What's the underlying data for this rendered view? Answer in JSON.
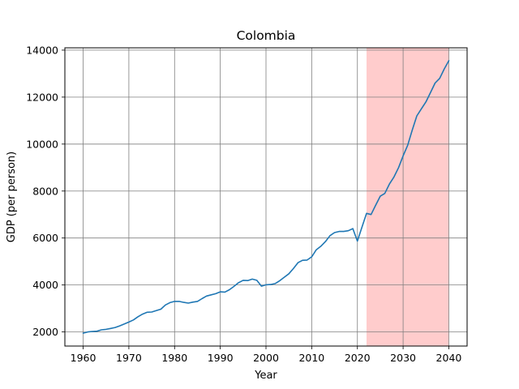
{
  "chart_data": {
    "type": "line",
    "title": "Colombia",
    "xlabel": "Year",
    "ylabel": "GDP (per person)",
    "xlim": [
      1956,
      2044
    ],
    "ylim": [
      1400,
      14100
    ],
    "xticks": [
      1960,
      1970,
      1980,
      1990,
      2000,
      2010,
      2020,
      2030,
      2040
    ],
    "yticks": [
      2000,
      4000,
      6000,
      8000,
      10000,
      12000,
      14000
    ],
    "grid": true,
    "shaded_region": {
      "x_start": 2022,
      "x_end": 2040,
      "color": "#ffcccc"
    },
    "series": [
      {
        "color": "#1f77b4",
        "x": [
          1960,
          1961,
          1962,
          1963,
          1964,
          1965,
          1966,
          1967,
          1968,
          1969,
          1970,
          1971,
          1972,
          1973,
          1974,
          1975,
          1976,
          1977,
          1978,
          1979,
          1980,
          1981,
          1982,
          1983,
          1984,
          1985,
          1986,
          1987,
          1988,
          1989,
          1990,
          1991,
          1992,
          1993,
          1994,
          1995,
          1996,
          1997,
          1998,
          1999,
          2000,
          2001,
          2002,
          2003,
          2004,
          2005,
          2006,
          2007,
          2008,
          2009,
          2010,
          2011,
          2012,
          2013,
          2014,
          2015,
          2016,
          2017,
          2018,
          2019,
          2020,
          2021,
          2022,
          2023,
          2024,
          2025,
          2026,
          2027,
          2028,
          2029,
          2030,
          2031,
          2032,
          2033,
          2034,
          2035,
          2036,
          2037,
          2038,
          2039,
          2040
        ],
        "values": [
          1950,
          2000,
          2020,
          2030,
          2090,
          2110,
          2150,
          2190,
          2260,
          2340,
          2420,
          2510,
          2650,
          2760,
          2840,
          2850,
          2910,
          2970,
          3150,
          3250,
          3300,
          3300,
          3260,
          3230,
          3270,
          3300,
          3420,
          3530,
          3580,
          3630,
          3710,
          3700,
          3800,
          3940,
          4100,
          4200,
          4190,
          4250,
          4200,
          3950,
          4010,
          4020,
          4060,
          4180,
          4330,
          4480,
          4700,
          4950,
          5050,
          5060,
          5200,
          5500,
          5650,
          5850,
          6100,
          6230,
          6280,
          6280,
          6310,
          6400,
          5870,
          6470,
          7050,
          7000,
          7400,
          7780,
          7900,
          8300,
          8600,
          9000,
          9500,
          9950,
          10600,
          11200,
          11500,
          11800,
          12200,
          12600,
          12800,
          13200,
          13550
        ]
      }
    ]
  }
}
